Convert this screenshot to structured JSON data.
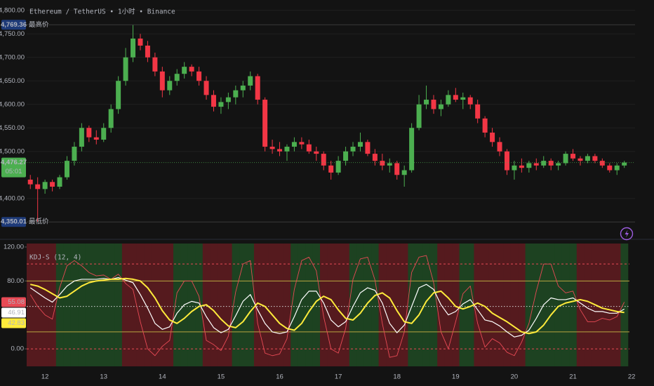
{
  "chart_data": [
    {
      "type": "candlestick",
      "title": "Ethereum / TetherUS • 1小时 • Binance",
      "categories": [
        null,
        null,
        "12",
        null,
        null,
        null,
        null,
        null,
        null,
        null,
        "13",
        null,
        null,
        null,
        null,
        null,
        null,
        null,
        "14",
        null,
        null,
        null,
        null,
        null,
        null,
        null,
        "15",
        null,
        null,
        null,
        null,
        null,
        null,
        null,
        "16",
        null,
        null,
        null,
        null,
        null,
        null,
        null,
        "17",
        null,
        null,
        null,
        null,
        null,
        null,
        null,
        "18",
        null,
        null,
        null,
        null,
        null,
        null,
        null,
        "19",
        null,
        null,
        null,
        null,
        null,
        null,
        null,
        "20",
        null,
        null,
        null,
        null,
        null,
        null,
        null,
        "21",
        null,
        null,
        null,
        null,
        null,
        null,
        null,
        "22"
      ],
      "open": [
        4440,
        4430,
        4420,
        4435,
        4425,
        4445,
        4480,
        4510,
        4550,
        4530,
        4525,
        4550,
        4590,
        4650,
        4700,
        4740,
        4725,
        4700,
        4670,
        4630,
        4650,
        4665,
        4680,
        4670,
        4650,
        4620,
        4595,
        4605,
        4615,
        4630,
        4640,
        4660,
        4610,
        4510,
        4505,
        4500,
        4510,
        4520,
        4515,
        4500,
        4495,
        4470,
        4455,
        4480,
        4500,
        4510,
        4520,
        4495,
        4480,
        4470,
        4475,
        4450,
        4460,
        4550,
        4600,
        4610,
        4590,
        4600,
        4620,
        4610,
        4615,
        4600,
        4570,
        4540,
        4520,
        4500,
        4460,
        4470,
        4465,
        4475,
        4470,
        4480,
        4470,
        4475,
        4495,
        4485,
        4480,
        4490,
        4480,
        4470,
        4460,
        4470,
        null
      ],
      "high": [
        4450,
        4445,
        4440,
        4440,
        4450,
        4490,
        4520,
        4560,
        4555,
        4545,
        4560,
        4600,
        4660,
        4720,
        4769.36,
        4750,
        4735,
        4710,
        4680,
        4660,
        4675,
        4690,
        4685,
        4680,
        4660,
        4630,
        4615,
        4625,
        4640,
        4650,
        4670,
        4665,
        4615,
        4525,
        4520,
        4515,
        4530,
        4530,
        4525,
        4510,
        4500,
        4480,
        4490,
        4510,
        4520,
        4540,
        4525,
        4505,
        4495,
        4485,
        4480,
        4470,
        4560,
        4620,
        4640,
        4620,
        4610,
        4630,
        4635,
        4625,
        4620,
        4610,
        4575,
        4550,
        4530,
        4505,
        4480,
        4485,
        4480,
        4485,
        4490,
        4485,
        4480,
        4500,
        4505,
        4490,
        4495,
        4495,
        4485,
        4475,
        4475,
        4480,
        null
      ],
      "low": [
        4420,
        4350.01,
        4410,
        4415,
        4420,
        4440,
        4470,
        4500,
        4520,
        4515,
        4520,
        4540,
        4580,
        4640,
        4690,
        4715,
        4690,
        4660,
        4615,
        4620,
        4640,
        4655,
        4660,
        4640,
        4610,
        4585,
        4580,
        4590,
        4600,
        4615,
        4630,
        4600,
        4500,
        4495,
        4490,
        4480,
        4500,
        4505,
        4495,
        4480,
        4460,
        4440,
        4450,
        4470,
        4490,
        4500,
        4490,
        4470,
        4460,
        4455,
        4440,
        4425,
        4455,
        4545,
        4590,
        4580,
        4575,
        4595,
        4605,
        4590,
        4590,
        4560,
        4530,
        4510,
        4490,
        4450,
        4440,
        4455,
        4455,
        4460,
        4465,
        4460,
        4460,
        4470,
        4480,
        4470,
        4475,
        4475,
        4465,
        4455,
        4450,
        4465,
        null
      ],
      "close": [
        4430,
        4420,
        4435,
        4425,
        4445,
        4480,
        4510,
        4550,
        4530,
        4525,
        4550,
        4590,
        4650,
        4700,
        4740,
        4725,
        4700,
        4670,
        4630,
        4650,
        4665,
        4680,
        4670,
        4650,
        4620,
        4595,
        4605,
        4615,
        4630,
        4640,
        4660,
        4610,
        4510,
        4505,
        4500,
        4510,
        4520,
        4515,
        4500,
        4495,
        4470,
        4455,
        4480,
        4500,
        4510,
        4520,
        4495,
        4480,
        4470,
        4475,
        4450,
        4460,
        4550,
        4600,
        4610,
        4590,
        4600,
        4620,
        4610,
        4615,
        4600,
        4570,
        4540,
        4520,
        4500,
        4460,
        4470,
        4465,
        4475,
        4470,
        4480,
        4470,
        4475,
        4495,
        4485,
        4480,
        4490,
        4480,
        4470,
        4460,
        4470,
        4476.27,
        null
      ],
      "up_color": "#4caf50",
      "down_color": "#f23645",
      "ylim": [
        4322,
        4822
      ],
      "yticks": [
        {
          "value": 4800,
          "label": "4,800.00"
        },
        {
          "value": 4750,
          "label": "4,750.00"
        },
        {
          "value": 4700,
          "label": "4,700.00"
        },
        {
          "value": 4650,
          "label": "4,650.00"
        },
        {
          "value": 4600,
          "label": "4,600.00"
        },
        {
          "value": 4550,
          "label": "4,550.00"
        },
        {
          "value": 4500,
          "label": "4,500.00"
        },
        {
          "value": 4400,
          "label": "4,400.00"
        }
      ],
      "grid": true,
      "high_marker": {
        "value": 4769.36,
        "label": "4,769.36",
        "tag": "最高价",
        "color": "#1e3a78"
      },
      "low_marker": {
        "value": 4350.01,
        "label": "4,350.01",
        "tag": "最低价",
        "color": "#1e3a78"
      },
      "last_price": {
        "value": 4476.27,
        "label": "4,476.27",
        "countdown": "05:01",
        "color": "#4caf50"
      }
    },
    {
      "type": "line",
      "title": "KDJ-S (12, 4)",
      "series": [
        {
          "color": "#ffffff",
          "width": 1.2,
          "values": [
            72,
            66,
            60,
            55,
            64,
            74,
            80,
            82,
            82,
            82,
            83,
            82,
            84,
            81,
            78,
            64,
            48,
            30,
            23,
            26,
            42,
            52,
            56,
            54,
            38,
            25,
            19,
            23,
            39,
            56,
            64,
            46,
            30,
            20,
            18,
            20,
            38,
            58,
            68,
            68,
            54,
            34,
            26,
            32,
            50,
            66,
            72,
            69,
            54,
            30,
            19,
            28,
            50,
            72,
            76,
            70,
            52,
            40,
            44,
            53,
            58,
            46,
            34,
            32,
            27,
            20,
            14,
            16,
            22,
            36,
            52,
            60,
            58,
            58,
            60,
            54,
            48,
            44,
            44,
            42,
            42,
            46.91,
            null
          ]
        },
        {
          "color": "#ffeb3b",
          "width": 2,
          "values": [
            76,
            74,
            70,
            65,
            60,
            62,
            68,
            74,
            78,
            80,
            81,
            82,
            82,
            83,
            82,
            80,
            72,
            60,
            45,
            34,
            30,
            36,
            44,
            50,
            52,
            45,
            35,
            27,
            25,
            32,
            44,
            54,
            50,
            40,
            30,
            24,
            22,
            30,
            44,
            56,
            62,
            58,
            46,
            36,
            34,
            42,
            54,
            63,
            66,
            60,
            45,
            32,
            30,
            40,
            56,
            66,
            68,
            60,
            50,
            47,
            50,
            54,
            50,
            42,
            37,
            32,
            26,
            20,
            18,
            20,
            28,
            40,
            50,
            54,
            56,
            58,
            56,
            52,
            48,
            46,
            44,
            42.83,
            null
          ]
        },
        {
          "color": "#e84a55",
          "width": 0.9,
          "values": [
            64,
            50,
            40,
            35,
            72,
            98,
            104,
            98,
            90,
            86,
            87,
            82,
            88,
            77,
            70,
            32,
            0,
            -8,
            3,
            10,
            66,
            80,
            80,
            62,
            10,
            5,
            -2,
            15,
            67,
            100,
            104,
            30,
            -5,
            -8,
            -6,
            12,
            70,
            104,
            108,
            92,
            38,
            0,
            -5,
            24,
            82,
            106,
            108,
            81,
            30,
            -10,
            -8,
            20,
            90,
            108,
            110,
            78,
            20,
            0,
            32,
            65,
            74,
            30,
            2,
            12,
            7,
            -4,
            -8,
            8,
            30,
            68,
            100,
            100,
            74,
            66,
            68,
            46,
            32,
            32,
            36,
            34,
            38,
            55.08,
            null
          ]
        }
      ],
      "band_colors": {
        "up": "#1d4221",
        "down": "#551a1e"
      },
      "ylim": [
        -20.6,
        124.1
      ],
      "yticks": [
        {
          "value": 120,
          "label": "120.00"
        },
        {
          "value": 80,
          "label": "80.00"
        },
        {
          "value": 0,
          "label": "0.00"
        }
      ],
      "levels": [
        {
          "value": 100,
          "color": "#e84a55",
          "style": "dashed"
        },
        {
          "value": 80,
          "color": "#b8a640",
          "style": "solid"
        },
        {
          "value": 50,
          "color": "#d8d8d8",
          "style": "dotted"
        },
        {
          "value": 20,
          "color": "#b8a640",
          "style": "solid"
        },
        {
          "value": 0,
          "color": "#e84a55",
          "style": "dashed"
        }
      ]
    }
  ]
}
